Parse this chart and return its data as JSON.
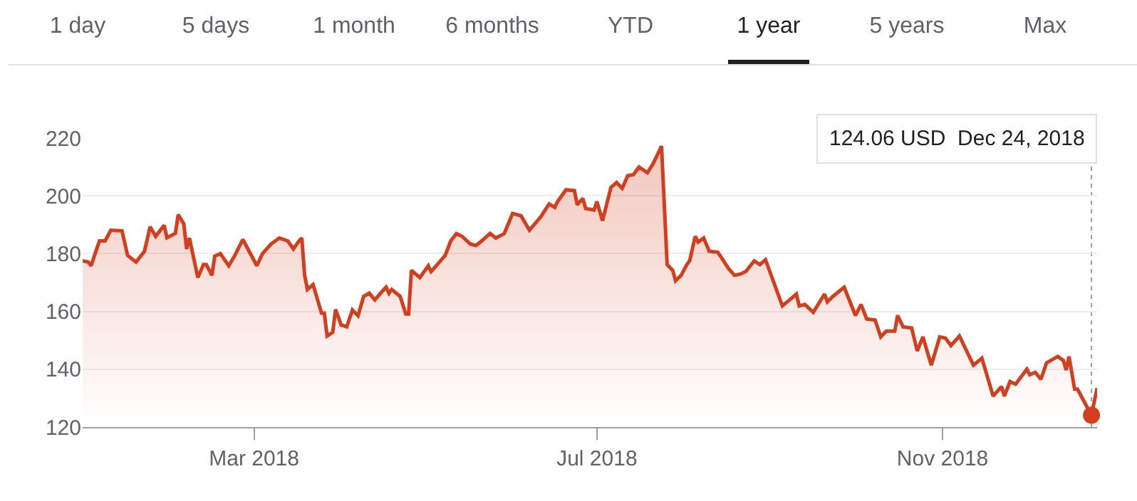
{
  "chart_data": {
    "type": "area",
    "color": "#d23f1f",
    "x": [
      "2017-12-30",
      "2018-01-01",
      "2018-01-02",
      "2018-01-04",
      "2018-01-05",
      "2018-01-07",
      "2018-01-09",
      "2018-01-13",
      "2018-01-15",
      "2018-01-18",
      "2018-01-21",
      "2018-01-23",
      "2018-01-25",
      "2018-01-28",
      "2018-01-29",
      "2018-02-01",
      "2018-02-02",
      "2018-02-04",
      "2018-02-05",
      "2018-02-06",
      "2018-02-09",
      "2018-02-11",
      "2018-02-12",
      "2018-02-14",
      "2018-02-15",
      "2018-02-17",
      "2018-02-20",
      "2018-02-22",
      "2018-02-25",
      "2018-03-02",
      "2018-03-04",
      "2018-03-07",
      "2018-03-10",
      "2018-03-13",
      "2018-03-15",
      "2018-03-17",
      "2018-03-18",
      "2018-03-19",
      "2018-03-20",
      "2018-03-22",
      "2018-03-25",
      "2018-03-26",
      "2018-03-27",
      "2018-03-29",
      "2018-03-30",
      "2018-04-01",
      "2018-04-03",
      "2018-04-05",
      "2018-04-07",
      "2018-04-09",
      "2018-04-11",
      "2018-04-13",
      "2018-04-15",
      "2018-04-17",
      "2018-04-18",
      "2018-04-19",
      "2018-04-22",
      "2018-04-24",
      "2018-04-25",
      "2018-04-26",
      "2018-04-29",
      "2018-05-02",
      "2018-05-03",
      "2018-05-06",
      "2018-05-08",
      "2018-05-10",
      "2018-05-12",
      "2018-05-14",
      "2018-05-17",
      "2018-05-19",
      "2018-05-21",
      "2018-05-24",
      "2018-05-26",
      "2018-05-29",
      "2018-06-01",
      "2018-06-04",
      "2018-06-07",
      "2018-06-11",
      "2018-06-14",
      "2018-06-16",
      "2018-06-17",
      "2018-06-20",
      "2018-06-23",
      "2018-06-24",
      "2018-06-26",
      "2018-06-27",
      "2018-06-30",
      "2018-07-01",
      "2018-07-03",
      "2018-07-06",
      "2018-07-08",
      "2018-07-10",
      "2018-07-12",
      "2018-07-14",
      "2018-07-16",
      "2018-07-19",
      "2018-07-21",
      "2018-07-24",
      "2018-07-26",
      "2018-07-28",
      "2018-07-29",
      "2018-07-31",
      "2018-08-02",
      "2018-08-03",
      "2018-08-05",
      "2018-08-06",
      "2018-08-08",
      "2018-08-10",
      "2018-08-13",
      "2018-08-14",
      "2018-08-17",
      "2018-08-19",
      "2018-08-21",
      "2018-08-23",
      "2018-08-26",
      "2018-08-28",
      "2018-08-30",
      "2018-09-05",
      "2018-09-10",
      "2018-09-11",
      "2018-09-13",
      "2018-09-16",
      "2018-09-20",
      "2018-09-21",
      "2018-09-23",
      "2018-09-27",
      "2018-10-01",
      "2018-10-03",
      "2018-10-05",
      "2018-10-08",
      "2018-10-10",
      "2018-10-12",
      "2018-10-15",
      "2018-10-16",
      "2018-10-18",
      "2018-10-21",
      "2018-10-23",
      "2018-10-25",
      "2018-10-28",
      "2018-10-31",
      "2018-11-02",
      "2018-11-04",
      "2018-11-07",
      "2018-11-12",
      "2018-11-15",
      "2018-11-19",
      "2018-11-22",
      "2018-11-23",
      "2018-11-25",
      "2018-11-27",
      "2018-12-01",
      "2018-12-02",
      "2018-12-04",
      "2018-12-06",
      "2018-12-08",
      "2018-12-12",
      "2018-12-14",
      "2018-12-15",
      "2018-12-16",
      "2018-12-18",
      "2018-12-19",
      "2018-12-24",
      "2018-12-26"
    ],
    "values": [
      177.5,
      177.1,
      175.8,
      181.6,
      184.4,
      184.4,
      188.1,
      187.9,
      179.4,
      177.1,
      180.8,
      189.3,
      186,
      189.8,
      185.5,
      187,
      193.5,
      190.3,
      181.6,
      185.4,
      171.7,
      176.2,
      176.2,
      172.5,
      179.1,
      180,
      175.8,
      179.1,
      184.9,
      175.8,
      180,
      183.3,
      185.4,
      184.4,
      181.6,
      184.4,
      185.4,
      172.5,
      167.6,
      169.3,
      159.4,
      159.4,
      151.5,
      152.8,
      160.7,
      155.3,
      154.7,
      160.5,
      158.5,
      165.2,
      166.3,
      164,
      166.3,
      168.4,
      166.3,
      167.6,
      165.2,
      159.1,
      159.1,
      174.2,
      171.7,
      175.8,
      173.8,
      177.1,
      179.4,
      184.4,
      186.9,
      186,
      183.3,
      182.8,
      184.4,
      187,
      185.4,
      186.9,
      193.9,
      193.1,
      188.1,
      192.7,
      197.2,
      196,
      198,
      202.1,
      201.8,
      196.9,
      199.1,
      195.6,
      195.1,
      198,
      191.4,
      202.9,
      204.6,
      202.6,
      207,
      207.3,
      210,
      208,
      211.1,
      217.2,
      176.2,
      174.2,
      170.6,
      172.5,
      176.2,
      177.5,
      186,
      184,
      185.4,
      180.8,
      180.5,
      179.1,
      174.6,
      172.5,
      172.9,
      173.8,
      177.5,
      176.2,
      177.9,
      161.9,
      166,
      161.9,
      162.4,
      159.7,
      166,
      163.3,
      165.2,
      168.4,
      158.6,
      162.4,
      157.4,
      157,
      151.2,
      153.2,
      153.2,
      158.6,
      154.6,
      154.3,
      146.3,
      151.2,
      141.4,
      151.2,
      150.8,
      148.2,
      151.5,
      141.4,
      143.8,
      130.7,
      134,
      130.7,
      135.7,
      134.8,
      140,
      138.1,
      138.9,
      136.5,
      142.2,
      144.4,
      143,
      139.7,
      144.4,
      133.1,
      133.1,
      124.06,
      133.5
    ],
    "series": [
      {
        "type": "scatter",
        "color": "#d23f1f",
        "x": [
          "2018-12-24"
        ],
        "values": [
          124.06
        ],
        "marker": "circle"
      }
    ],
    "xlim": [
      "2017-12-30",
      "2018-12-26"
    ],
    "xticks": [
      {
        "value": "2018-03-01",
        "label": "Mar 2018"
      },
      {
        "value": "2018-07-01",
        "label": "Jul 2018"
      },
      {
        "value": "2018-11-01",
        "label": "Nov 2018"
      }
    ],
    "ylim": [
      120,
      220
    ],
    "yticks": [
      120,
      140,
      160,
      180,
      200,
      220
    ],
    "grid": "y",
    "line_style": "solid",
    "ref_lines": [
      {
        "axis": "x",
        "value": "2018-12-24",
        "color": "#9e9e9e",
        "line_style": "dotted"
      }
    ],
    "annotations": [
      "1 day",
      "5 days",
      "1 month",
      "6 months",
      "YTD",
      "1 year",
      "5 years",
      "Max",
      "124.06 USD  Dec 24, 2018"
    ]
  }
}
